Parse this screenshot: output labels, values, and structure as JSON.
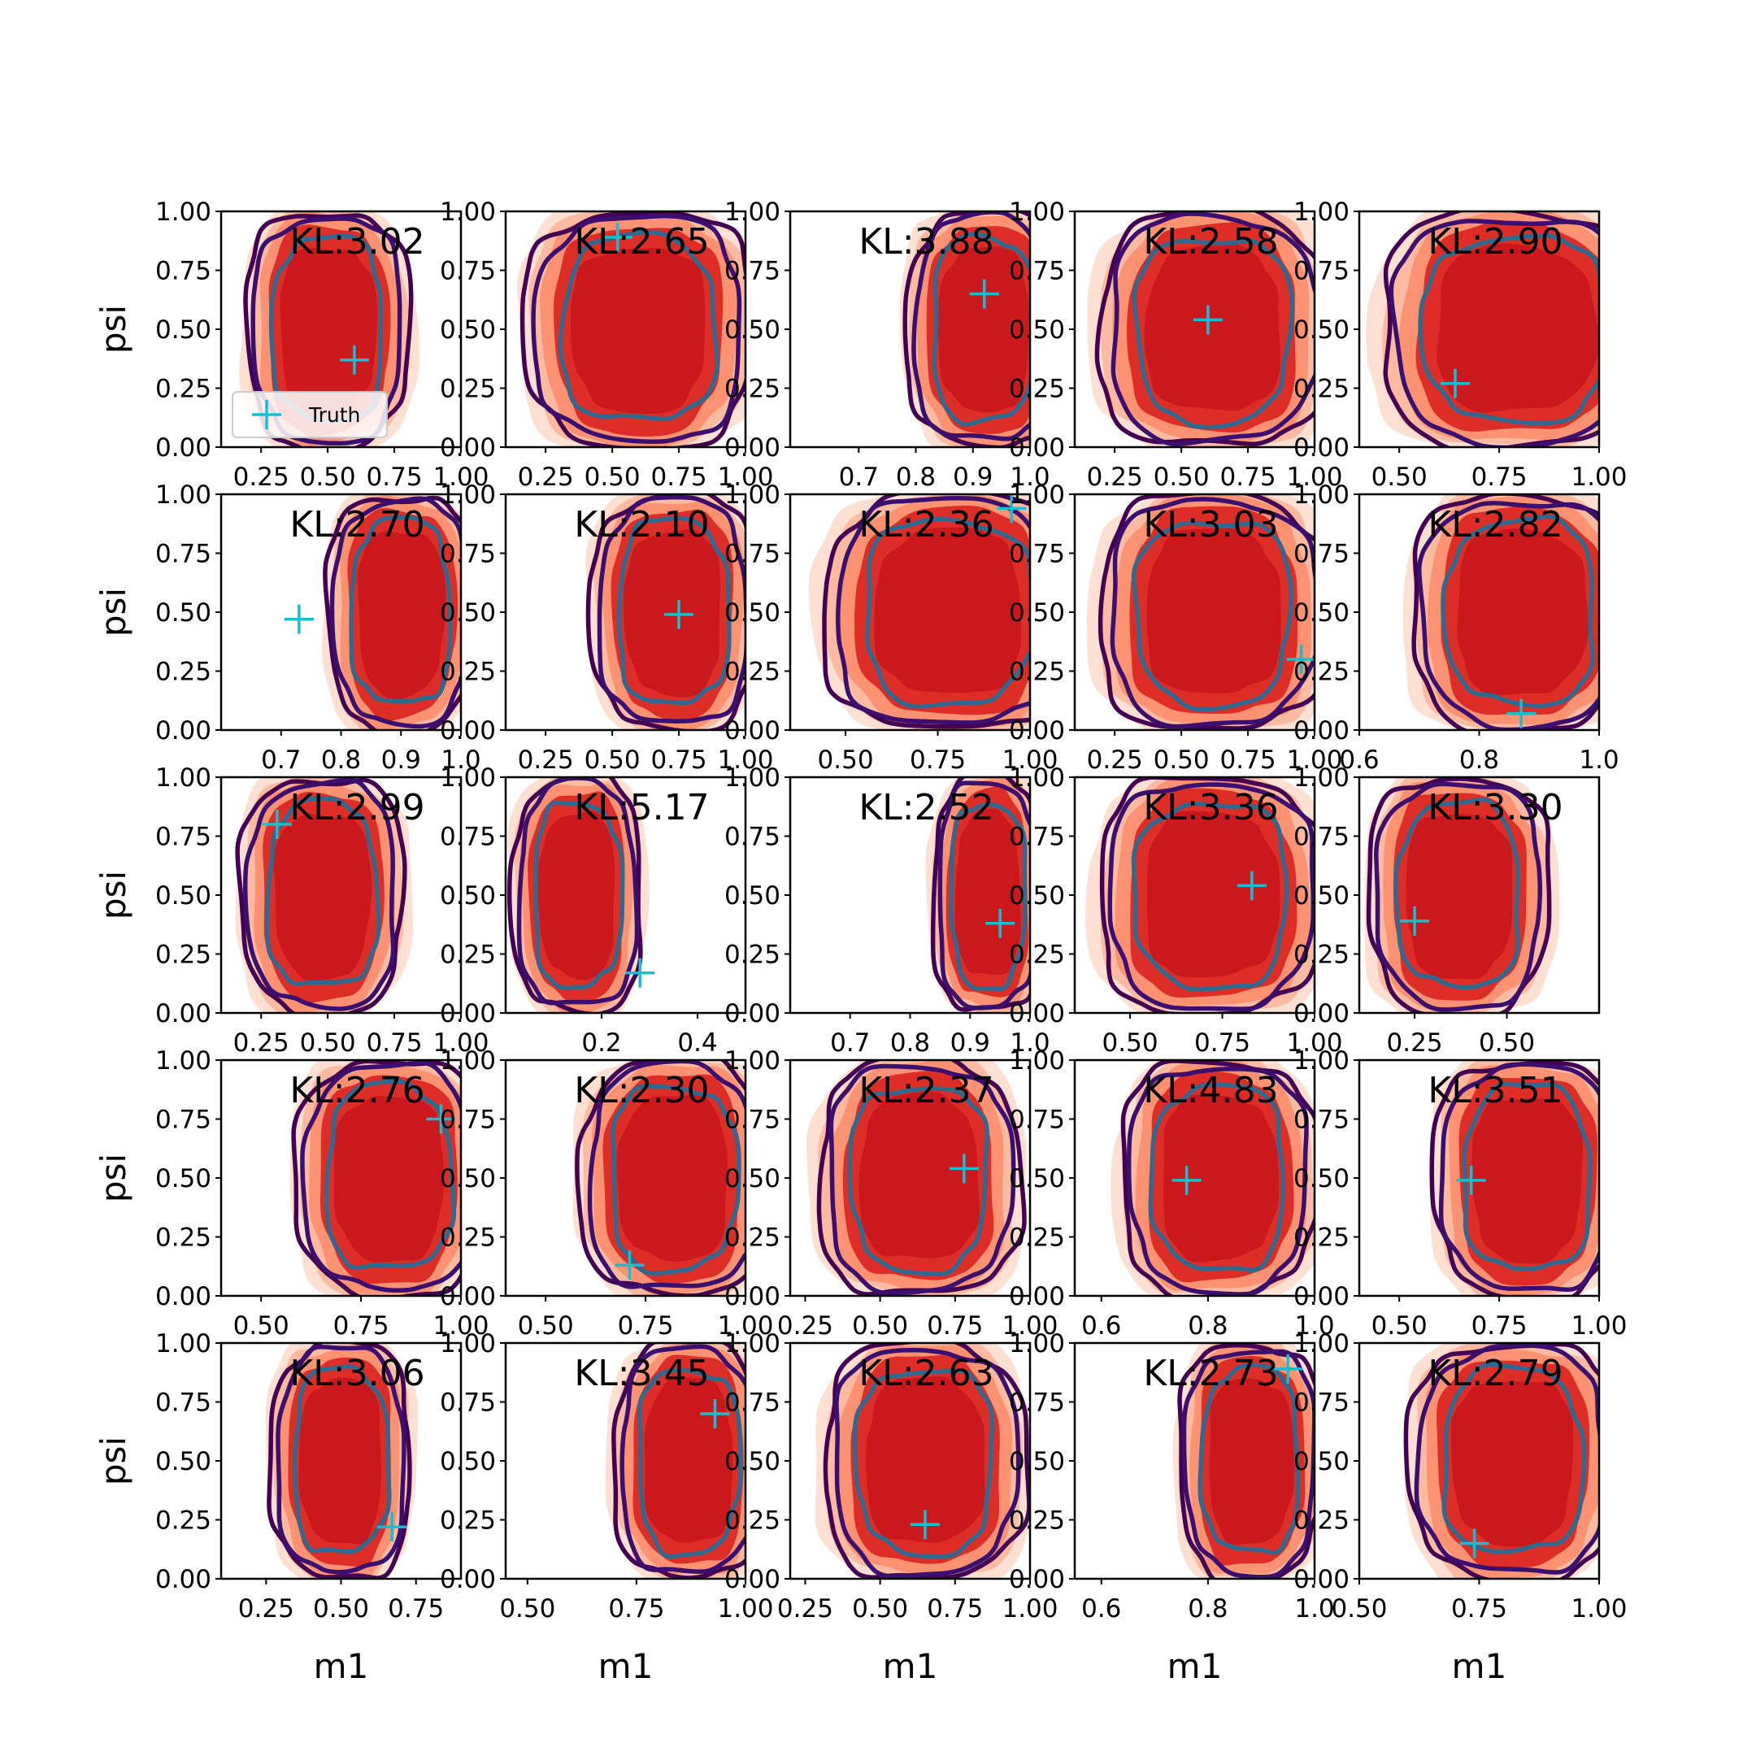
{
  "chart_data": {
    "type": "grid_of_2d_density_contours",
    "rows": 5,
    "cols": 5,
    "xlabel": "m1",
    "ylabel": "psi",
    "ylim": [
      0,
      1
    ],
    "yticks": [
      0.0,
      0.25,
      0.5,
      0.75,
      1.0
    ],
    "ytick_labels": [
      "0.00",
      "0.25",
      "0.50",
      "0.75",
      "1.00"
    ],
    "legend": {
      "label": "Truth",
      "marker": "+",
      "color": "#17becf",
      "placement": "lower-left",
      "panel_index": 0
    },
    "colors": {
      "filled_contours": [
        "#fee0d2",
        "#fcbba1",
        "#fc9272",
        "#de2d26",
        "#cb181d"
      ],
      "outer_contour": "#440154",
      "middle_contour": "#3b0f70",
      "inner_contour": "#31688e",
      "truth_marker": "#17becf"
    },
    "panels": [
      {
        "kl": "KL:3.02",
        "xlim": [
          0.1,
          1.0
        ],
        "xticks": [
          0.25,
          0.5,
          0.75,
          1.0
        ],
        "xtick_labels": [
          "0.25",
          "0.50",
          "0.75",
          "1.00"
        ],
        "truth": [
          0.6,
          0.37
        ],
        "center": [
          0.5,
          0.5
        ],
        "width": 0.5
      },
      {
        "kl": "KL:2.65",
        "xlim": [
          0.1,
          1.0
        ],
        "xticks": [
          0.25,
          0.5,
          0.75,
          1.0
        ],
        "xtick_labels": [
          "0.25",
          "0.50",
          "0.75",
          "1.00"
        ],
        "truth": [
          0.52,
          0.89
        ],
        "center": [
          0.6,
          0.5
        ],
        "width": 0.7
      },
      {
        "kl": "KL:3.88",
        "xlim": [
          0.58,
          1.0
        ],
        "xticks": [
          0.7,
          0.8,
          0.9,
          1.0
        ],
        "xtick_labels": [
          "0.7",
          "0.8",
          "0.9",
          "1.0"
        ],
        "truth": [
          0.92,
          0.65
        ],
        "center": [
          0.92,
          0.5
        ],
        "width": 0.22
      },
      {
        "kl": "KL:2.58",
        "xlim": [
          0.1,
          1.0
        ],
        "xticks": [
          0.25,
          0.5,
          0.75,
          1.0
        ],
        "xtick_labels": [
          "0.25",
          "0.50",
          "0.75",
          "1.00"
        ],
        "truth": [
          0.6,
          0.54
        ],
        "center": [
          0.62,
          0.5
        ],
        "width": 0.7
      },
      {
        "kl": "KL:2.90",
        "xlim": [
          0.4,
          1.0
        ],
        "xticks": [
          0.5,
          0.75,
          1.0
        ],
        "xtick_labels": [
          "0.50",
          "0.75",
          "1.00"
        ],
        "truth": [
          0.64,
          0.27
        ],
        "center": [
          0.79,
          0.5
        ],
        "width": 0.55
      },
      {
        "kl": "KL:2.70",
        "xlim": [
          0.6,
          1.0
        ],
        "xticks": [
          0.7,
          0.8,
          0.9,
          1.0
        ],
        "xtick_labels": [
          "0.7",
          "0.8",
          "0.9",
          "1.0"
        ],
        "truth": [
          0.73,
          0.47
        ],
        "center": [
          0.9,
          0.5
        ],
        "width": 0.2
      },
      {
        "kl": "KL:2.10",
        "xlim": [
          0.1,
          1.0
        ],
        "xticks": [
          0.25,
          0.5,
          0.75,
          1.0
        ],
        "xtick_labels": [
          "0.25",
          "0.50",
          "0.75",
          "1.00"
        ],
        "truth": [
          0.75,
          0.49
        ],
        "center": [
          0.73,
          0.5
        ],
        "width": 0.5
      },
      {
        "kl": "KL:2.36",
        "xlim": [
          0.35,
          1.0
        ],
        "xticks": [
          0.5,
          0.75,
          1.0
        ],
        "xtick_labels": [
          "0.50",
          "0.75",
          "1.00"
        ],
        "truth": [
          0.95,
          0.94
        ],
        "center": [
          0.78,
          0.5
        ],
        "width": 0.55
      },
      {
        "kl": "KL:3.03",
        "xlim": [
          0.1,
          1.0
        ],
        "xticks": [
          0.25,
          0.5,
          0.75,
          1.0
        ],
        "xtick_labels": [
          "0.25",
          "0.50",
          "0.75",
          "1.00"
        ],
        "truth": [
          0.95,
          0.3
        ],
        "center": [
          0.62,
          0.5
        ],
        "width": 0.7
      },
      {
        "kl": "KL:2.82",
        "xlim": [
          0.6,
          1.0
        ],
        "xticks": [
          0.6,
          0.8,
          1.0
        ],
        "xtick_labels": [
          "0.6",
          "0.8",
          "1.0"
        ],
        "truth": [
          0.87,
          0.07
        ],
        "center": [
          0.87,
          0.5
        ],
        "width": 0.3
      },
      {
        "kl": "KL:2.99",
        "xlim": [
          0.1,
          1.0
        ],
        "xticks": [
          0.25,
          0.5,
          0.75,
          1.0
        ],
        "xtick_labels": [
          "0.25",
          "0.50",
          "0.75",
          "1.00"
        ],
        "truth": [
          0.31,
          0.8
        ],
        "center": [
          0.48,
          0.5
        ],
        "width": 0.5
      },
      {
        "kl": "KL:5.17",
        "xlim": [
          0.0,
          0.5
        ],
        "xticks": [
          0.2,
          0.4
        ],
        "xtick_labels": [
          "0.2",
          "0.4"
        ],
        "truth": [
          0.28,
          0.17
        ],
        "center": [
          0.15,
          0.5
        ],
        "width": 0.22
      },
      {
        "kl": "KL:2.52",
        "xlim": [
          0.6,
          1.0
        ],
        "xticks": [
          0.7,
          0.8,
          0.9,
          1.0
        ],
        "xtick_labels": [
          "0.7",
          "0.8",
          "0.9",
          "1.0"
        ],
        "truth": [
          0.95,
          0.38
        ],
        "center": [
          0.93,
          0.5
        ],
        "width": 0.15
      },
      {
        "kl": "KL:3.36",
        "xlim": [
          0.35,
          1.0
        ],
        "xticks": [
          0.5,
          0.75,
          1.0
        ],
        "xtick_labels": [
          "0.50",
          "0.75",
          "1.00"
        ],
        "truth": [
          0.83,
          0.54
        ],
        "center": [
          0.72,
          0.5
        ],
        "width": 0.5
      },
      {
        "kl": "KL:3.30",
        "xlim": [
          0.1,
          0.75
        ],
        "xticks": [
          0.25,
          0.5
        ],
        "xtick_labels": [
          "0.25",
          "0.50"
        ],
        "truth": [
          0.25,
          0.39
        ],
        "center": [
          0.37,
          0.5
        ],
        "width": 0.4
      },
      {
        "kl": "KL:2.76",
        "xlim": [
          0.4,
          1.0
        ],
        "xticks": [
          0.5,
          0.75,
          1.0
        ],
        "xtick_labels": [
          "0.50",
          "0.75",
          "1.00"
        ],
        "truth": [
          0.95,
          0.75
        ],
        "center": [
          0.82,
          0.5
        ],
        "width": 0.38
      },
      {
        "kl": "KL:2.30",
        "xlim": [
          0.4,
          1.0
        ],
        "xticks": [
          0.5,
          0.75,
          1.0
        ],
        "xtick_labels": [
          "0.50",
          "0.75",
          "1.00"
        ],
        "truth": [
          0.71,
          0.13
        ],
        "center": [
          0.82,
          0.5
        ],
        "width": 0.38
      },
      {
        "kl": "KL:2.37",
        "xlim": [
          0.2,
          1.0
        ],
        "xticks": [
          0.25,
          0.5,
          0.75,
          1.0
        ],
        "xtick_labels": [
          "0.25",
          "0.50",
          "0.75",
          "1.00"
        ],
        "truth": [
          0.78,
          0.54
        ],
        "center": [
          0.63,
          0.5
        ],
        "width": 0.55
      },
      {
        "kl": "KL:4.83",
        "xlim": [
          0.55,
          1.0
        ],
        "xticks": [
          0.6,
          0.8,
          1.0
        ],
        "xtick_labels": [
          "0.6",
          "0.8",
          "1.0"
        ],
        "truth": [
          0.76,
          0.49
        ],
        "center": [
          0.82,
          0.5
        ],
        "width": 0.3
      },
      {
        "kl": "KL:3.51",
        "xlim": [
          0.4,
          1.0
        ],
        "xticks": [
          0.5,
          0.75,
          1.0
        ],
        "xtick_labels": [
          "0.50",
          "0.75",
          "1.00"
        ],
        "truth": [
          0.68,
          0.49
        ],
        "center": [
          0.82,
          0.5
        ],
        "width": 0.38
      },
      {
        "kl": "KL:3.06",
        "xlim": [
          0.1,
          0.9
        ],
        "xticks": [
          0.25,
          0.5,
          0.75
        ],
        "xtick_labels": [
          "0.25",
          "0.50",
          "0.75"
        ],
        "truth": [
          0.67,
          0.22
        ],
        "center": [
          0.5,
          0.5
        ],
        "width": 0.38
      },
      {
        "kl": "KL:3.45",
        "xlim": [
          0.45,
          1.0
        ],
        "xticks": [
          0.5,
          0.75,
          1.0
        ],
        "xtick_labels": [
          "0.50",
          "0.75",
          "1.00"
        ],
        "truth": [
          0.93,
          0.7
        ],
        "center": [
          0.87,
          0.5
        ],
        "width": 0.28
      },
      {
        "kl": "KL:2.63",
        "xlim": [
          0.2,
          1.0
        ],
        "xticks": [
          0.25,
          0.5,
          0.75,
          1.0
        ],
        "xtick_labels": [
          "0.25",
          "0.50",
          "0.75",
          "1.00"
        ],
        "truth": [
          0.65,
          0.23
        ],
        "center": [
          0.65,
          0.5
        ],
        "width": 0.55
      },
      {
        "kl": "KL:2.73",
        "xlim": [
          0.55,
          1.0
        ],
        "xticks": [
          0.6,
          0.8,
          1.0
        ],
        "xtick_labels": [
          "0.6",
          "0.8",
          "1.0"
        ],
        "truth": [
          0.95,
          0.89
        ],
        "center": [
          0.88,
          0.5
        ],
        "width": 0.22
      },
      {
        "kl": "KL:2.79",
        "xlim": [
          0.5,
          1.0
        ],
        "xticks": [
          0.5,
          0.75,
          1.0
        ],
        "xtick_labels": [
          "0.50",
          "0.75",
          "1.00"
        ],
        "truth": [
          0.74,
          0.15
        ],
        "center": [
          0.82,
          0.5
        ],
        "width": 0.35
      }
    ]
  }
}
